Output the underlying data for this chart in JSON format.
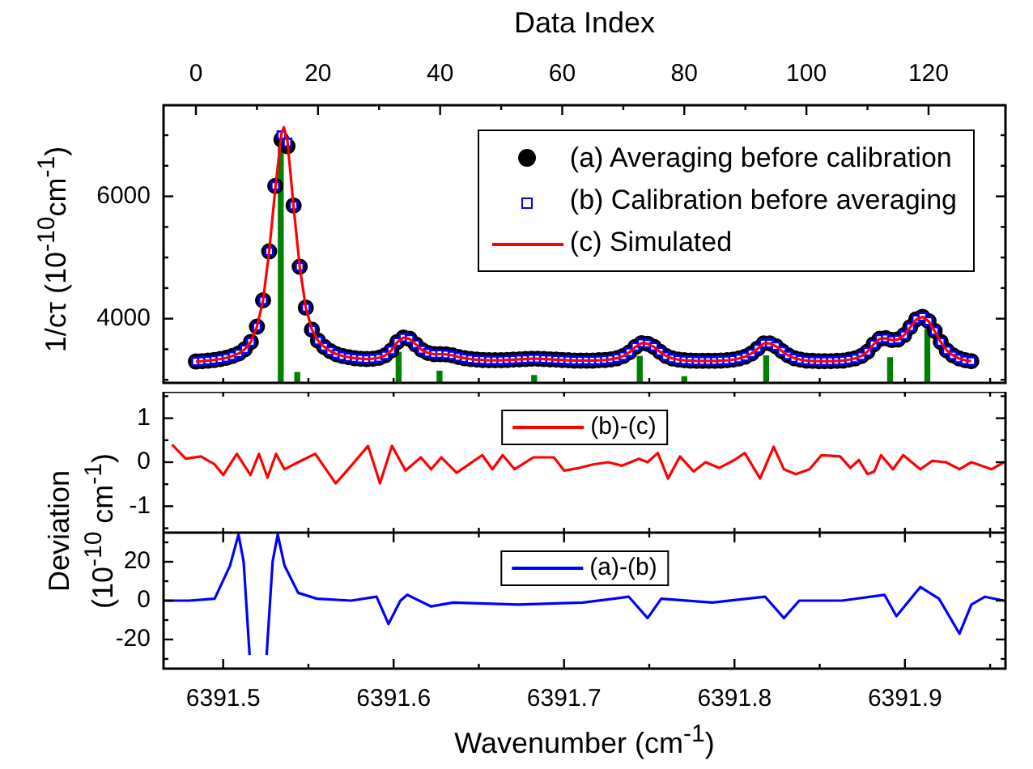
{
  "chart_data": [
    {
      "type": "scatter",
      "x2label": "Data Index",
      "ylabel": "1/cτ (10$^{-10}$cm$^{-1}$)",
      "legend": "top right",
      "tick_labels": "y",
      "xlim": [
        6391.465,
        6391.959
      ],
      "xticks": [
        {
          "value": 6391.5,
          "label": null
        },
        {
          "value": 6391.55,
          "label": null
        },
        {
          "value": 6391.6,
          "label": null
        },
        {
          "value": 6391.65,
          "label": null
        },
        {
          "value": 6391.7,
          "label": null
        },
        {
          "value": 6391.75,
          "label": null
        },
        {
          "value": 6391.8,
          "label": null
        },
        {
          "value": 6391.85,
          "label": null
        },
        {
          "value": 6391.9,
          "label": null
        },
        {
          "value": 6391.95,
          "label": null
        }
      ],
      "x2lim": [
        0,
        127.3
      ],
      "x2ticks": [
        0,
        {
          "value": 10,
          "label": null
        },
        20,
        {
          "value": 30,
          "label": null
        },
        40,
        {
          "value": 50,
          "label": null
        },
        60,
        {
          "value": 70,
          "label": null
        },
        80,
        {
          "value": 90,
          "label": null
        },
        100,
        {
          "value": 110,
          "label": null
        },
        120
      ],
      "ylim": [
        2950,
        7490
      ],
      "yticks": [
        {
          "value": 3000,
          "label": null
        },
        {
          "value": 3500,
          "label": null
        },
        4000,
        {
          "value": 4500,
          "label": null
        },
        {
          "value": 5000,
          "label": null
        },
        {
          "value": 5500,
          "label": null
        },
        6000,
        {
          "value": 6500,
          "label": null
        },
        {
          "value": 7000,
          "label": null
        }
      ],
      "x": [
        0,
        1,
        2,
        3,
        4,
        5,
        6,
        7,
        8,
        9,
        10,
        11,
        12,
        13,
        14,
        15,
        16,
        17,
        18,
        19,
        20,
        21,
        22,
        23,
        24,
        25,
        26,
        27,
        28,
        29,
        30,
        31,
        32,
        33,
        34,
        35,
        36,
        37,
        38,
        39,
        40,
        41,
        42,
        43,
        44,
        45,
        46,
        47,
        48,
        49,
        50,
        51,
        52,
        53,
        54,
        55,
        56,
        57,
        58,
        59,
        60,
        61,
        62,
        63,
        64,
        65,
        66,
        67,
        68,
        69,
        70,
        71,
        72,
        73,
        74,
        75,
        76,
        77,
        78,
        79,
        80,
        81,
        82,
        83,
        84,
        85,
        86,
        87,
        88,
        89,
        90,
        91,
        92,
        93,
        94,
        95,
        96,
        97,
        98,
        99,
        100,
        101,
        102,
        103,
        104,
        105,
        106,
        107,
        108,
        109,
        110,
        111,
        112,
        113,
        114,
        115,
        116,
        117,
        118,
        119,
        120,
        121,
        122,
        123,
        124,
        125,
        126,
        127
      ],
      "series": [
        {
          "type": "bar",
          "axis": "x2",
          "color": "#008000",
          "x": [
            13.9,
            16.6,
            33.2,
            39.9,
            55.4,
            72.7,
            80.0,
            93.4,
            113.7,
            119.8
          ],
          "values": [
            6900,
            3120,
            3450,
            3140,
            3070,
            3380,
            3050,
            3390,
            3360,
            3820
          ]
        },
        {
          "name": "(a) Averaging before calibration",
          "axis": "x2",
          "marker": "circle",
          "color": "#000000",
          "values": [
            3300,
            3305,
            3315,
            3325,
            3340,
            3360,
            3390,
            3430,
            3500,
            3620,
            3870,
            4300,
            5100,
            6170,
            6930,
            6820,
            5850,
            4850,
            4180,
            3820,
            3640,
            3540,
            3470,
            3420,
            3390,
            3370,
            3355,
            3345,
            3340,
            3345,
            3360,
            3400,
            3480,
            3620,
            3690,
            3670,
            3580,
            3490,
            3440,
            3420,
            3420,
            3415,
            3400,
            3375,
            3355,
            3340,
            3330,
            3325,
            3320,
            3320,
            3320,
            3325,
            3330,
            3335,
            3340,
            3345,
            3345,
            3340,
            3335,
            3330,
            3325,
            3320,
            3315,
            3315,
            3315,
            3315,
            3320,
            3325,
            3335,
            3355,
            3390,
            3450,
            3540,
            3600,
            3590,
            3540,
            3460,
            3390,
            3350,
            3330,
            3320,
            3315,
            3310,
            3310,
            3310,
            3310,
            3315,
            3320,
            3330,
            3350,
            3380,
            3430,
            3510,
            3595,
            3595,
            3550,
            3470,
            3400,
            3355,
            3330,
            3315,
            3310,
            3305,
            3305,
            3305,
            3310,
            3315,
            3330,
            3350,
            3390,
            3460,
            3580,
            3670,
            3680,
            3650,
            3660,
            3730,
            3860,
            3990,
            4030,
            3960,
            3800,
            3620,
            3480,
            3400,
            3350,
            3320,
            3305
          ]
        },
        {
          "name": "(b) Calibration before averaging",
          "axis": "x2",
          "marker": "square",
          "color": "#0000ff",
          "values": [
            3300,
            3305,
            3315,
            3325,
            3340,
            3360,
            3390,
            3430,
            3500,
            3620,
            3870,
            4300,
            5100,
            6170,
            7000,
            6880,
            5850,
            4850,
            4180,
            3820,
            3640,
            3540,
            3470,
            3420,
            3390,
            3370,
            3355,
            3345,
            3340,
            3345,
            3360,
            3400,
            3480,
            3620,
            3690,
            3670,
            3580,
            3490,
            3440,
            3420,
            3420,
            3415,
            3400,
            3375,
            3355,
            3340,
            3330,
            3325,
            3320,
            3320,
            3320,
            3325,
            3330,
            3335,
            3340,
            3345,
            3345,
            3340,
            3335,
            3330,
            3325,
            3320,
            3315,
            3315,
            3315,
            3315,
            3320,
            3325,
            3335,
            3355,
            3390,
            3450,
            3540,
            3600,
            3590,
            3540,
            3460,
            3390,
            3350,
            3330,
            3320,
            3315,
            3310,
            3310,
            3310,
            3310,
            3315,
            3320,
            3330,
            3350,
            3380,
            3430,
            3510,
            3595,
            3595,
            3550,
            3470,
            3400,
            3355,
            3330,
            3315,
            3310,
            3305,
            3305,
            3305,
            3310,
            3315,
            3330,
            3350,
            3390,
            3460,
            3580,
            3670,
            3680,
            3650,
            3660,
            3730,
            3860,
            3990,
            4030,
            3960,
            3800,
            3620,
            3480,
            3400,
            3350,
            3320,
            3305
          ]
        },
        {
          "name": "(c) Simulated",
          "type": "line",
          "axis": "x2",
          "marker": "none",
          "color": "#ff0000",
          "x": [
            0,
            1,
            2,
            3,
            4,
            5,
            6,
            7,
            8,
            9,
            10,
            11,
            12,
            13,
            14,
            14.4,
            15,
            16,
            17,
            18,
            19,
            20,
            21,
            22,
            23,
            24,
            25,
            26,
            27,
            28,
            29,
            30,
            31,
            32,
            33,
            34,
            35,
            36,
            37,
            38,
            39,
            40,
            41,
            42,
            43,
            44,
            45,
            46,
            47,
            48,
            49,
            50,
            51,
            52,
            53,
            54,
            55,
            56,
            57,
            58,
            59,
            60,
            61,
            62,
            63,
            64,
            65,
            66,
            67,
            68,
            69,
            70,
            71,
            72,
            73,
            74,
            75,
            76,
            77,
            78,
            79,
            80,
            81,
            82,
            83,
            84,
            85,
            86,
            87,
            88,
            89,
            90,
            91,
            92,
            93,
            94,
            95,
            96,
            97,
            98,
            99,
            100,
            101,
            102,
            103,
            104,
            105,
            106,
            107,
            108,
            109,
            110,
            111,
            112,
            113,
            114,
            115,
            116,
            117,
            118,
            119,
            120,
            121,
            122,
            123,
            124,
            125,
            126,
            127
          ],
          "values": [
            3300,
            3305,
            3315,
            3325,
            3340,
            3360,
            3390,
            3430,
            3500,
            3620,
            3870,
            4300,
            5100,
            6120,
            7020,
            7130,
            6900,
            5830,
            4850,
            4180,
            3820,
            3640,
            3540,
            3470,
            3420,
            3390,
            3370,
            3355,
            3345,
            3340,
            3345,
            3360,
            3400,
            3480,
            3620,
            3690,
            3670,
            3580,
            3490,
            3440,
            3420,
            3420,
            3415,
            3400,
            3375,
            3355,
            3340,
            3330,
            3325,
            3320,
            3320,
            3320,
            3325,
            3330,
            3335,
            3340,
            3345,
            3345,
            3340,
            3335,
            3330,
            3325,
            3320,
            3315,
            3315,
            3315,
            3315,
            3320,
            3325,
            3335,
            3355,
            3390,
            3450,
            3540,
            3600,
            3590,
            3540,
            3460,
            3390,
            3350,
            3330,
            3320,
            3315,
            3310,
            3310,
            3310,
            3310,
            3315,
            3320,
            3330,
            3350,
            3380,
            3430,
            3510,
            3595,
            3595,
            3550,
            3470,
            3400,
            3355,
            3330,
            3315,
            3310,
            3305,
            3305,
            3305,
            3310,
            3315,
            3330,
            3350,
            3390,
            3460,
            3580,
            3670,
            3680,
            3650,
            3660,
            3730,
            3860,
            3990,
            4030,
            3960,
            3800,
            3620,
            3480,
            3400,
            3350,
            3320,
            3305
          ]
        }
      ]
    },
    {
      "type": "line",
      "legend": "top",
      "tick_labels": "y",
      "xlim": [
        6391.465,
        6391.959
      ],
      "xticks": [
        {
          "value": 6391.5,
          "label": null
        },
        {
          "value": 6391.55,
          "label": null
        },
        {
          "value": 6391.6,
          "label": null
        },
        {
          "value": 6391.65,
          "label": null
        },
        {
          "value": 6391.7,
          "label": null
        },
        {
          "value": 6391.75,
          "label": null
        },
        {
          "value": 6391.8,
          "label": null
        },
        {
          "value": 6391.85,
          "label": null
        },
        {
          "value": 6391.9,
          "label": null
        },
        {
          "value": 6391.95,
          "label": null
        }
      ],
      "ylim": [
        -1.6,
        1.6
      ],
      "yticks": [
        {
          "value": -1.5,
          "label": null
        },
        -1,
        {
          "value": -0.5,
          "label": null
        },
        0,
        {
          "value": 0.5,
          "label": null
        },
        1,
        {
          "value": 1.5,
          "label": null
        }
      ],
      "series": [
        {
          "name": "(b)-(c)",
          "color": "#ff0000",
          "x": [
            6391.47,
            6391.478,
            6391.487,
            6391.495,
            6391.5,
            6391.508,
            6391.516,
            6391.521,
            6391.526,
            6391.531,
            6391.536,
            6391.544,
            6391.554,
            6391.566,
            6391.574,
            6391.585,
            6391.592,
            6391.599,
            6391.607,
            6391.616,
            6391.622,
            6391.628,
            6391.637,
            6391.643,
            6391.652,
            6391.658,
            6391.664,
            6391.671,
            6391.682,
            6391.694,
            6391.7,
            6391.709,
            6391.717,
            6391.726,
            6391.734,
            6391.744,
            6391.749,
            6391.755,
            6391.761,
            6391.768,
            6391.776,
            6391.783,
            6391.791,
            6391.8,
            6391.806,
            6391.815,
            6391.823,
            6391.829,
            6391.836,
            6391.844,
            6391.851,
            6391.862,
            6391.868,
            6391.873,
            6391.878,
            6391.882,
            6391.886,
            6391.893,
            6391.899,
            6391.909,
            6391.916,
            6391.924,
            6391.932,
            6391.939,
            6391.951,
            6391.958
          ],
          "values": [
            0.4,
            0.08,
            0.13,
            -0.05,
            -0.29,
            0.19,
            -0.29,
            0.19,
            -0.35,
            0.19,
            -0.16,
            0,
            0.19,
            -0.48,
            -0.13,
            0.37,
            -0.48,
            0.37,
            -0.19,
            0.11,
            -0.16,
            0.11,
            -0.24,
            -0.08,
            0.16,
            -0.16,
            0.16,
            -0.16,
            0.11,
            0.11,
            -0.19,
            -0.13,
            -0.05,
            0,
            -0.08,
            0.08,
            0,
            0.21,
            -0.37,
            0.13,
            -0.21,
            0,
            -0.13,
            0.05,
            0.21,
            -0.37,
            0.35,
            -0.16,
            -0.27,
            -0.16,
            0.16,
            0.13,
            -0.13,
            0.05,
            -0.27,
            -0.21,
            0.16,
            -0.16,
            0.16,
            -0.16,
            0.03,
            0,
            -0.16,
            0,
            -0.16,
            0
          ]
        }
      ]
    },
    {
      "type": "line",
      "legend": "top",
      "xlabel": "Wavenumber (cm$^{-1}$)",
      "ylabel": "Deviation (10$^{-10}$ cm$^{-1}$)",
      "xlim": [
        6391.465,
        6391.959
      ],
      "xticks": [
        6391.5,
        {
          "value": 6391.55,
          "label": null
        },
        6391.6,
        {
          "value": 6391.65,
          "label": null
        },
        6391.7,
        {
          "value": 6391.75,
          "label": null
        },
        6391.8,
        {
          "value": 6391.85,
          "label": null
        },
        6391.9,
        {
          "value": 6391.95,
          "label": null
        }
      ],
      "ylim": [
        -35,
        35
      ],
      "yticks": [
        {
          "value": -30,
          "label": null
        },
        -20,
        {
          "value": -10,
          "label": null
        },
        0,
        {
          "value": 10,
          "label": null
        },
        20,
        {
          "value": 30,
          "label": null
        }
      ],
      "series": [
        {
          "name": "(a)-(b)",
          "color": "#0000ff",
          "x": [
            6391.465,
            6391.48,
            6391.495,
            6391.504,
            6391.509,
            6391.512,
            6391.5155,
            6391.52,
            6391.5255,
            6391.529,
            6391.532,
            6391.536,
            6391.544,
            6391.555,
            6391.575,
            6391.59,
            6391.597,
            6391.604,
            6391.608,
            6391.622,
            6391.635,
            6391.673,
            6391.711,
            6391.738,
            6391.749,
            6391.757,
            6391.787,
            6391.818,
            6391.829,
            6391.838,
            6391.863,
            6391.888,
            6391.895,
            6391.909,
            6391.92,
            6391.932,
            6391.939,
            6391.947,
            6391.958
          ],
          "values": [
            0,
            0,
            1,
            18,
            34,
            20,
            -28,
            null,
            -28,
            20,
            34,
            18,
            4,
            1,
            0,
            2,
            -12,
            0,
            3,
            -3,
            -1,
            -2,
            -1,
            2,
            -9,
            1,
            -1,
            2,
            -9,
            0,
            0,
            3,
            -8,
            7,
            1,
            -17,
            -2,
            2,
            0
          ]
        }
      ]
    }
  ]
}
